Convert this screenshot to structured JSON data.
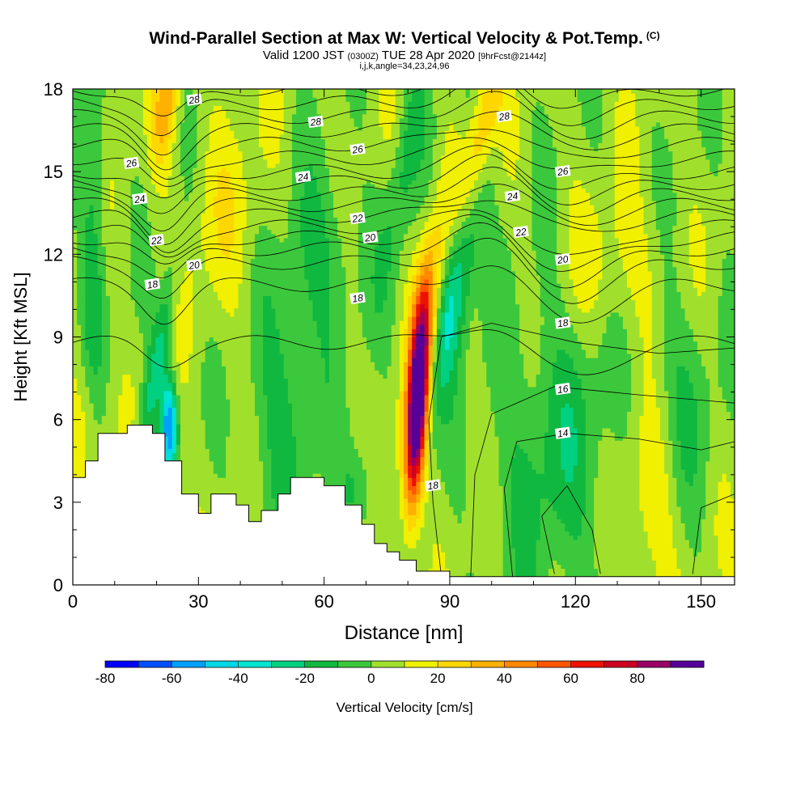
{
  "chart_data": {
    "type": "heatmap",
    "title": "Wind-Parallel Section at Max W: Vertical Velocity & Pot.Temp.",
    "title_mark": "(C)",
    "subtitle": {
      "valid": "Valid 1200 JST",
      "utc": "(0300Z)",
      "date": "TUE 28 Apr 2020",
      "forecast": "[9hrFcst@2144z]"
    },
    "indices": "i,j,k,angle=34,23,24,96",
    "xlabel": "Distance [nm]",
    "ylabel": "Height [Kft MSL]",
    "xlim": [
      0,
      158
    ],
    "ylim": [
      0,
      18
    ],
    "x_ticks": [
      0,
      30,
      60,
      90,
      120,
      150
    ],
    "y_ticks": [
      0,
      3,
      6,
      9,
      12,
      15,
      18
    ],
    "colorbar": {
      "label": "Vertical Velocity [cm/s]",
      "levels": [
        -80,
        -70,
        -60,
        -50,
        -40,
        -30,
        -20,
        -10,
        0,
        10,
        20,
        30,
        40,
        50,
        60,
        70,
        80,
        90
      ],
      "tick_labels": [
        -80,
        -60,
        -40,
        -20,
        0,
        20,
        40,
        60,
        80
      ],
      "colors": [
        "#0000ff",
        "#0050ff",
        "#00a0ff",
        "#00d8e8",
        "#00e5d0",
        "#00d080",
        "#10b840",
        "#3cc83c",
        "#a0e02c",
        "#f0f000",
        "#ffd700",
        "#ffb000",
        "#ff8800",
        "#ff5500",
        "#ee1100",
        "#cc0022",
        "#990066",
        "#550099"
      ]
    },
    "terrain_kft": [
      [
        0,
        3.9
      ],
      [
        3,
        4.5
      ],
      [
        6,
        5.5
      ],
      [
        13,
        5.8
      ],
      [
        19,
        5.5
      ],
      [
        22,
        4.5
      ],
      [
        26,
        3.3
      ],
      [
        30,
        2.6
      ],
      [
        33,
        3.3
      ],
      [
        39,
        2.9
      ],
      [
        42,
        2.3
      ],
      [
        45,
        2.7
      ],
      [
        49,
        3.3
      ],
      [
        52,
        3.9
      ],
      [
        60,
        3.6
      ],
      [
        65,
        2.9
      ],
      [
        69,
        2.2
      ],
      [
        72,
        1.5
      ],
      [
        75,
        1.2
      ],
      [
        78,
        0.9
      ],
      [
        82,
        0.5
      ],
      [
        90,
        0.3
      ],
      [
        158,
        0.3
      ]
    ],
    "theta_labels": [
      {
        "text": "28",
        "x": 29,
        "y": 17.6
      },
      {
        "text": "28",
        "x": 58,
        "y": 16.8
      },
      {
        "text": "28",
        "x": 103,
        "y": 17.0
      },
      {
        "text": "26",
        "x": 14,
        "y": 15.3
      },
      {
        "text": "26",
        "x": 68,
        "y": 15.8
      },
      {
        "text": "26",
        "x": 117,
        "y": 15.0
      },
      {
        "text": "24",
        "x": 16,
        "y": 14.0
      },
      {
        "text": "24",
        "x": 55,
        "y": 14.8
      },
      {
        "text": "24",
        "x": 105,
        "y": 14.1
      },
      {
        "text": "22",
        "x": 20,
        "y": 12.5
      },
      {
        "text": "22",
        "x": 68,
        "y": 13.3
      },
      {
        "text": "22",
        "x": 107,
        "y": 12.8
      },
      {
        "text": "20",
        "x": 29,
        "y": 11.6
      },
      {
        "text": "20",
        "x": 71,
        "y": 12.6
      },
      {
        "text": "20",
        "x": 117,
        "y": 11.8
      },
      {
        "text": "18",
        "x": 19,
        "y": 10.9
      },
      {
        "text": "18",
        "x": 68,
        "y": 10.4
      },
      {
        "text": "18",
        "x": 117,
        "y": 9.5
      },
      {
        "text": "16",
        "x": 117,
        "y": 7.1
      },
      {
        "text": "14",
        "x": 117,
        "y": 5.5
      },
      {
        "text": "18",
        "x": 86,
        "y": 3.6
      }
    ]
  }
}
